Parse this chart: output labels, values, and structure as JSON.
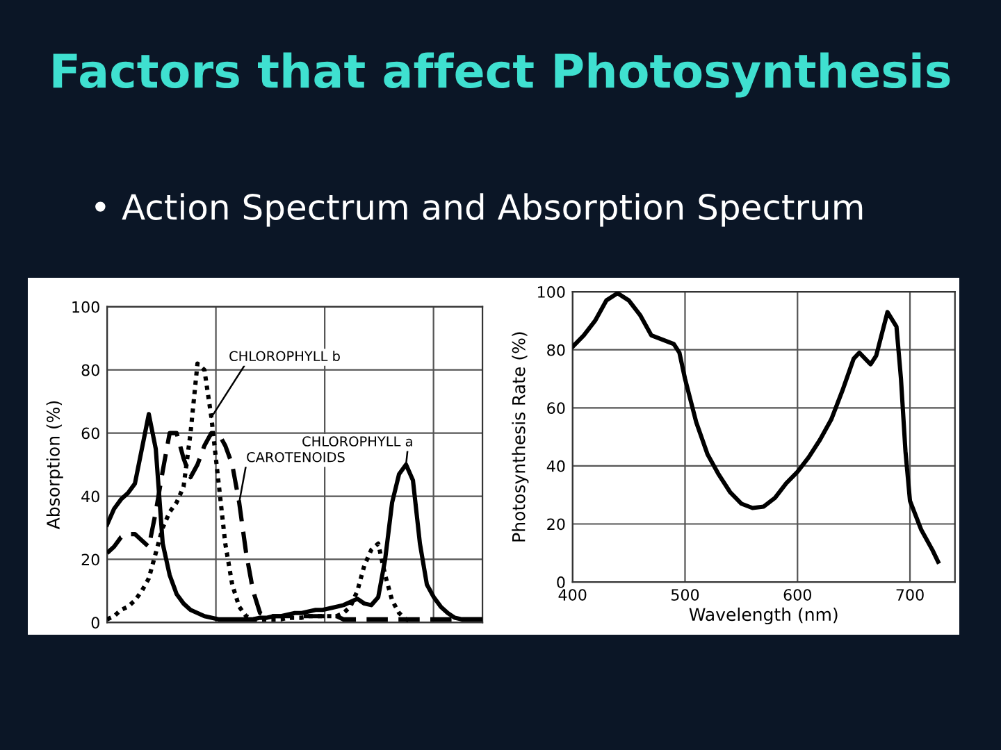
{
  "chart_data": [
    {
      "type": "line",
      "title": "Factors that affect Photosynthesis",
      "subtitle": "• Action Spectrum and Absorption Spectrum",
      "ylabel": "Absorption (%)",
      "categories": [
        null,
        null,
        null,
        null,
        null,
        null,
        null,
        null,
        null,
        null,
        null,
        null,
        null,
        null,
        null,
        null,
        null,
        null,
        null,
        null,
        null,
        null,
        null,
        null,
        null,
        null,
        null,
        null,
        null,
        null,
        null,
        null,
        null,
        null,
        null,
        null,
        null,
        null,
        null,
        null,
        null,
        null,
        null,
        null,
        null,
        null,
        null,
        null,
        null,
        null,
        null,
        null,
        null,
        null,
        null
      ],
      "series": [
        {
          "name": "CHLOROPHYLL a",
          "color": "#000000",
          "line_style": "solid",
          "values": [
            31,
            36,
            39,
            41,
            44,
            55,
            66,
            55,
            25,
            15,
            9,
            6,
            4,
            3,
            2,
            1.5,
            1,
            1,
            1,
            1,
            1,
            1,
            1.5,
            1.5,
            2,
            2,
            2.5,
            3,
            3,
            3.5,
            4,
            4,
            4.5,
            5,
            5.5,
            6.5,
            7.5,
            6,
            5.5,
            8,
            20,
            38,
            47,
            50,
            45,
            25,
            12,
            8,
            5,
            3,
            1.5,
            1,
            1,
            1,
            1
          ]
        },
        {
          "name": "CHLOROPHYLL b",
          "color": "#000000",
          "line_style": "dotted",
          "values": [
            1,
            2,
            4,
            5,
            7,
            10,
            14,
            22,
            30,
            35,
            38,
            43,
            60,
            82,
            80,
            65,
            45,
            25,
            12,
            5,
            2,
            1,
            1,
            1,
            1,
            1,
            1.5,
            1.5,
            1.5,
            2,
            2,
            2,
            2,
            2,
            3,
            5,
            10,
            18,
            23,
            25,
            15,
            7,
            3,
            1,
            0,
            null,
            null,
            null,
            null,
            null,
            null,
            null,
            null,
            null,
            null
          ]
        },
        {
          "name": "CAROTENOIDS",
          "color": "#000000",
          "line_style": "dashed",
          "values": [
            22,
            24,
            27,
            28,
            28,
            26,
            24,
            35,
            48,
            60,
            60,
            52,
            46,
            50,
            56,
            60,
            60,
            56,
            50,
            38,
            22,
            10,
            3,
            2,
            2,
            2,
            2,
            2,
            2,
            2,
            2,
            2,
            2,
            2,
            1,
            1,
            1,
            1,
            1,
            1,
            1,
            1,
            1,
            1,
            1,
            1,
            1,
            1,
            1,
            1,
            1,
            1,
            1,
            1,
            1
          ]
        }
      ],
      "ylim": [
        0,
        100
      ],
      "yticks": [
        0,
        20,
        40,
        60,
        80,
        100
      ],
      "grid": true,
      "tick_labels": "y",
      "legend": false
    },
    {
      "type": "line",
      "ylabel": "Photosynthesis Rate (%)",
      "xlabel": "Wavelength (nm)",
      "series": [
        {
          "color": "#000000",
          "x": [
            400,
            410,
            420,
            430,
            440,
            450,
            460,
            470,
            480,
            490,
            495,
            500,
            510,
            520,
            530,
            540,
            550,
            560,
            570,
            580,
            590,
            600,
            610,
            620,
            630,
            640,
            650,
            655,
            665,
            670,
            680,
            688,
            692,
            696,
            700,
            710,
            720,
            725
          ],
          "values": [
            81,
            85,
            90,
            97,
            99.5,
            97,
            92,
            85,
            83.5,
            82,
            79,
            70,
            55,
            44,
            37,
            31,
            27,
            25.5,
            26,
            29,
            34,
            38,
            43,
            49,
            56,
            66,
            77,
            79,
            75,
            78,
            93,
            88,
            70,
            45,
            28,
            18,
            11,
            7
          ]
        }
      ],
      "xlim": [
        400,
        740
      ],
      "xticks": [
        400,
        500,
        600,
        700
      ],
      "ylim": [
        0,
        100
      ],
      "yticks": [
        0,
        20,
        40,
        60,
        80,
        100
      ],
      "grid": true,
      "legend": false
    }
  ]
}
